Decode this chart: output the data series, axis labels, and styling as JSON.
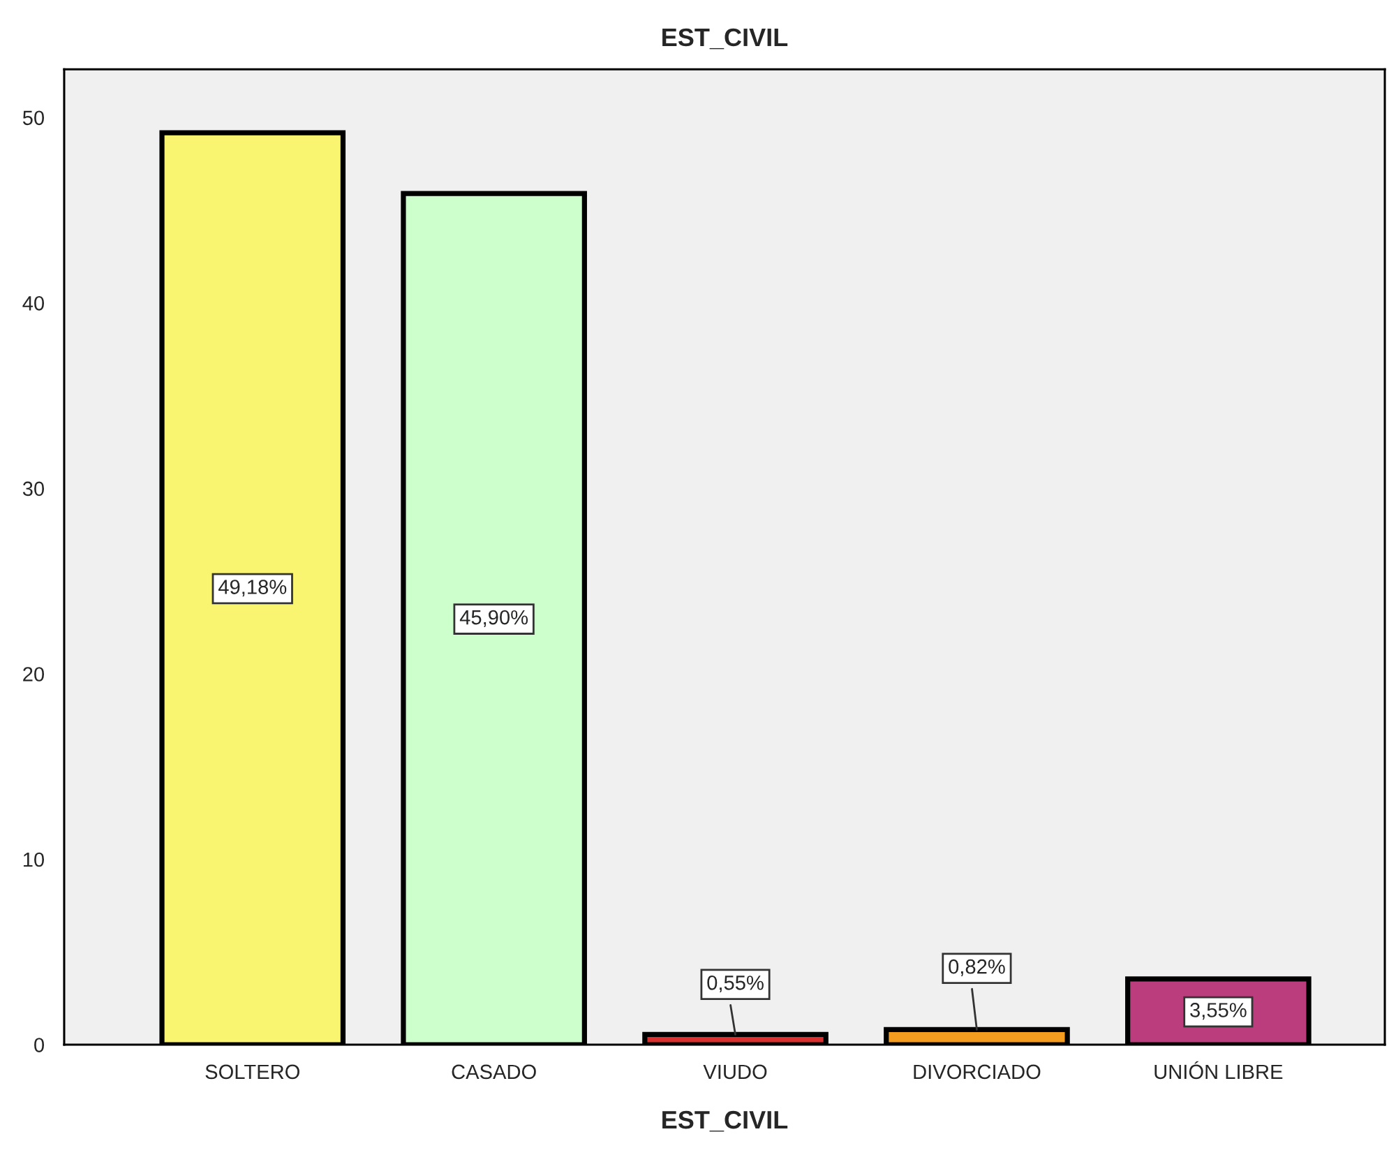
{
  "chart_data": {
    "type": "bar",
    "title": "EST_CIVIL",
    "xlabel": "EST_CIVIL",
    "categories": [
      "SOLTERO",
      "CASADO",
      "VIUDO",
      "DIVORCIADO",
      "UNIÓN LIBRE"
    ],
    "values": [
      49.18,
      45.9,
      0.55,
      0.82,
      3.55
    ],
    "value_labels": [
      "49,18%",
      "45,90%",
      "0,55%",
      "0,82%",
      "3,55%"
    ],
    "colors": [
      "#faf570",
      "#ccffcc",
      "#d9302f",
      "#f39c1f",
      "#bb3d7d"
    ],
    "ylim": [
      0,
      52.6
    ],
    "yticks": [
      0,
      10,
      20,
      30,
      40,
      50
    ]
  }
}
